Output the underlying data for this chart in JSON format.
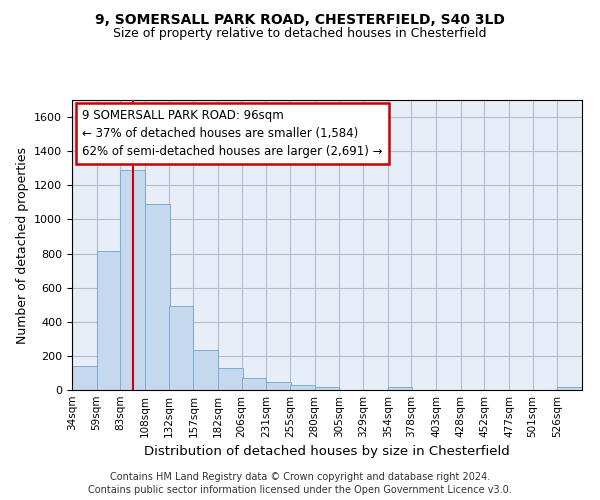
{
  "title1": "9, SOMERSALL PARK ROAD, CHESTERFIELD, S40 3LD",
  "title2": "Size of property relative to detached houses in Chesterfield",
  "xlabel": "Distribution of detached houses by size in Chesterfield",
  "ylabel": "Number of detached properties",
  "footer1": "Contains HM Land Registry data © Crown copyright and database right 2024.",
  "footer2": "Contains public sector information licensed under the Open Government Licence v3.0.",
  "annotation_line1": "9 SOMERSALL PARK ROAD: 96sqm",
  "annotation_line2": "← 37% of detached houses are smaller (1,584)",
  "annotation_line3": "62% of semi-detached houses are larger (2,691) →",
  "property_size": 96,
  "bar_color": "#c5d8ee",
  "bar_edge_color": "#7aadd4",
  "vline_color": "#cc0000",
  "annotation_box_edge_color": "#cc0000",
  "background_color": "#ffffff",
  "plot_bg_color": "#e8eef8",
  "grid_color": "#b0bcd0",
  "categories": [
    "34sqm",
    "59sqm",
    "83sqm",
    "108sqm",
    "132sqm",
    "157sqm",
    "182sqm",
    "206sqm",
    "231sqm",
    "255sqm",
    "280sqm",
    "305sqm",
    "329sqm",
    "354sqm",
    "378sqm",
    "403sqm",
    "428sqm",
    "452sqm",
    "477sqm",
    "501sqm",
    "526sqm"
  ],
  "bin_edges": [
    34,
    59,
    83,
    108,
    132,
    157,
    182,
    206,
    231,
    255,
    280,
    305,
    329,
    354,
    378,
    403,
    428,
    452,
    477,
    501,
    526
  ],
  "bin_width": 25,
  "values": [
    140,
    815,
    1290,
    1090,
    490,
    235,
    130,
    70,
    47,
    30,
    17,
    0,
    0,
    15,
    0,
    0,
    0,
    0,
    0,
    0,
    15
  ],
  "ylim": [
    0,
    1700
  ],
  "xlim_left": 34,
  "xlim_right": 551,
  "yticks": [
    0,
    200,
    400,
    600,
    800,
    1000,
    1200,
    1400,
    1600
  ]
}
